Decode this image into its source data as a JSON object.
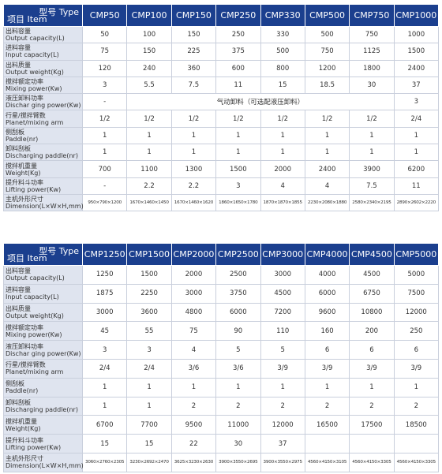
{
  "tables": [
    {
      "corner": {
        "type": "型号 Type",
        "item": "项目 Item"
      },
      "columns": [
        "CMP50",
        "CMP100",
        "CMP150",
        "CMP250",
        "CMP330",
        "CMP500",
        "CMP750",
        "CMP1000"
      ],
      "rows": [
        {
          "zh": "出料容量",
          "en": "Output capacity(L)",
          "cells": [
            50,
            100,
            150,
            250,
            330,
            500,
            750,
            1000
          ]
        },
        {
          "zh": "进料容量",
          "en": "Input capacity(L)",
          "cells": [
            75,
            150,
            225,
            375,
            500,
            750,
            1125,
            1500
          ]
        },
        {
          "zh": "出料质量",
          "en": "Output weight(Kg)",
          "cells": [
            120,
            240,
            360,
            600,
            800,
            1200,
            1800,
            2400
          ]
        },
        {
          "zh": "搅拌额定功率",
          "en": "Mixing power(Kw)",
          "cells": [
            3,
            5.5,
            7.5,
            11,
            15,
            18.5,
            30,
            37
          ]
        },
        {
          "zh": "液压卸料功率",
          "en": "Dischar ging power(Kw)",
          "cells": [
            "-",
            "气动卸料（可选配液压卸料）",
            3
          ]
        },
        {
          "zh": "行星/搅拌臂数",
          "en": "Planet/mixing arm",
          "cells": [
            "1/2",
            "1/2",
            "1/2",
            "1/2",
            "1/2",
            "1/2",
            "1/2",
            "2/4"
          ]
        },
        {
          "zh": "侧刮板",
          "en": "Paddle(nr)",
          "cells": [
            1,
            1,
            1,
            1,
            1,
            1,
            1,
            1
          ]
        },
        {
          "zh": "卸料刮板",
          "en": "Discharging paddle(nr)",
          "cells": [
            1,
            1,
            1,
            1,
            1,
            1,
            1,
            1
          ]
        },
        {
          "zh": "搅拌机重量",
          "en": "Weight(Kg)",
          "cells": [
            700,
            1100,
            1300,
            1500,
            2000,
            2400,
            3900,
            6200
          ]
        },
        {
          "zh": "提升料斗功率",
          "en": "Lifting power(Kw)",
          "cells": [
            "-",
            2.2,
            2.2,
            3,
            4,
            4,
            7.5,
            11
          ]
        },
        {
          "zh": "主机外形尺寸",
          "en": "Dimension(L×W×H,mm)",
          "cells": [
            "950×790×1200",
            "1670×1460×1450",
            "1670×1460×1620",
            "1860×1650×1780",
            "1870×1870×1855",
            "2230×2080×1880",
            "2580×2340×2195",
            "2890×2602×2220"
          ]
        }
      ]
    },
    {
      "corner": {
        "type": "型号 Type",
        "item": "项目 Item"
      },
      "columns": [
        "CMP1250",
        "CMP1500",
        "CMP2000",
        "CMP2500",
        "CMP3000",
        "CMP4000",
        "CMP4500",
        "CMP5000"
      ],
      "rows": [
        {
          "zh": "出料容量",
          "en": "Output capacity(L)",
          "cells": [
            1250,
            1500,
            2000,
            2500,
            3000,
            4000,
            4500,
            5000
          ]
        },
        {
          "zh": "进料容量",
          "en": "Input capacity(L)",
          "cells": [
            1875,
            2250,
            3000,
            3750,
            4500,
            6000,
            6750,
            7500
          ]
        },
        {
          "zh": "出料质量",
          "en": "Output weight(Kg)",
          "cells": [
            3000,
            3600,
            4800,
            6000,
            7200,
            9600,
            10800,
            12000
          ]
        },
        {
          "zh": "搅拌额定功率",
          "en": "Mixing power(Kw)",
          "cells": [
            45,
            55,
            75,
            90,
            110,
            160,
            200,
            250
          ]
        },
        {
          "zh": "液压卸料功率",
          "en": "Dischar ging power(Kw)",
          "cells": [
            3,
            3,
            4,
            5,
            5,
            6,
            6,
            6
          ]
        },
        {
          "zh": "行星/搅拌臂数",
          "en": "Planet/mixing arm",
          "cells": [
            "2/4",
            "2/4",
            "3/6",
            "3/6",
            "3/9",
            "3/9",
            "3/9",
            "3/9"
          ]
        },
        {
          "zh": "侧刮板",
          "en": "Paddle(nr)",
          "cells": [
            1,
            1,
            1,
            1,
            1,
            1,
            1,
            1
          ]
        },
        {
          "zh": "卸料刮板",
          "en": "Discharging paddle(nr)",
          "cells": [
            1,
            1,
            2,
            2,
            2,
            2,
            2,
            2
          ]
        },
        {
          "zh": "搅拌机重量",
          "en": "Weight(Kg)",
          "cells": [
            6700,
            7700,
            9500,
            11000,
            12000,
            16500,
            17500,
            18500
          ]
        },
        {
          "zh": "提升料斗功率",
          "en": "Lifting power(Kw)",
          "cells": [
            15,
            15,
            22,
            30,
            37,
            null,
            null,
            null
          ]
        },
        {
          "zh": "主机外形尺寸",
          "en": "Dimension(L×W×H,mm)",
          "cells": [
            "3060×2760×2305",
            "3230×2692×2470",
            "3625×3230×2630",
            "3900×3550×2695",
            "3900×3550×2975",
            "4560×4150×3105",
            "4560×4150×3305",
            "4560×4150×3305"
          ]
        }
      ]
    }
  ]
}
